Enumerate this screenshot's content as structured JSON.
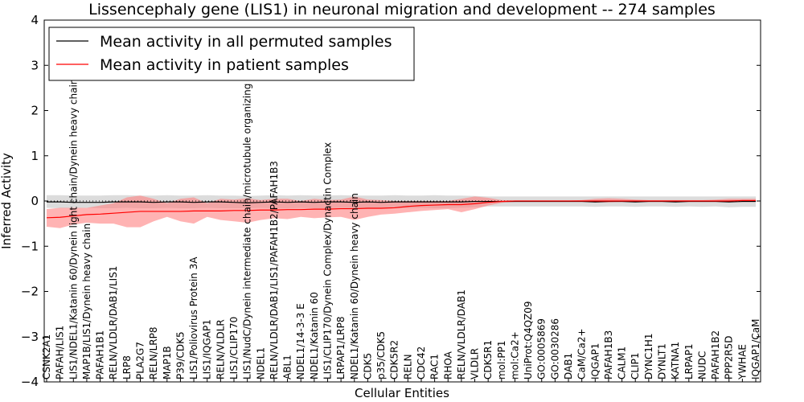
{
  "chart_data": {
    "type": "line",
    "title": "Lissencephaly gene (LIS1) in neuronal migration and development -- 274 samples",
    "xlabel": "Cellular Entities",
    "ylabel": "Inferred Activity",
    "ylim": [
      -4,
      4
    ],
    "yticks": [
      -4,
      -3,
      -2,
      -1,
      0,
      1,
      2,
      3,
      4
    ],
    "ytick_labels": [
      "−4",
      "−3",
      "−2",
      "−1",
      "0",
      "1",
      "2",
      "3",
      "4"
    ],
    "legend_position": "top-left",
    "categories": [
      "CSNK2A1",
      "PAFAH/LIS1",
      "LIS1/NDEL1/Katanin 60/Dynein light chain/Dynein heavy chain",
      "MAP1B/LIS1/Dynein heavy chain",
      "PAFAH1B1",
      "RELN/VLDLR/DAB1/LIS1",
      "LRP8",
      "PLA2G7",
      "RELN/LRP8",
      "MAP1B",
      "P39/CDK5",
      "LIS1/Poliovirus Protein 3A",
      "LIS1/IQGAP1",
      "RELN/VLDLR",
      "LIS1/CLIP170",
      "LIS1/NudC/Dynein intermediate chain/microtubule organizing center",
      "NDEL1",
      "RELN/VLDLR/DAB1/LIS1/PAFAH1B2/PAFAH1B3",
      "ABL1",
      "NDEL1/14-3-3 E",
      "NDEL1/Katanin 60",
      "LIS1/CLIP170/Dynein Complex/Dynactin Complex",
      "LRPAP1/LRP8",
      "NDEL1/Katanin 60/Dynein heavy chain",
      "CDK5",
      "p35/CDK5",
      "CDK5R2",
      "RELN",
      "CDC42",
      "RAC1",
      "RHOA",
      "RELN/VLDLR/DAB1",
      "VLDLR",
      "CDK5R1",
      "mol:PP1",
      "mol:Ca2+",
      "UniProt:Q4QZ09",
      "GO:0005869",
      "GO:0030286",
      "DAB1",
      "CaM/Ca2+",
      "IQGAP1",
      "PAFAH1B3",
      "CALM1",
      "CLIP1",
      "DYNC1H1",
      "DYNLT1",
      "KATNA1",
      "LRPAP1",
      "NUDC",
      "PAFAH1B2",
      "PPP2R5D",
      "YWHAE",
      "IQGAP1/CaM"
    ],
    "series": [
      {
        "name": "Mean activity in all permuted samples",
        "color": "#000000",
        "band_color": "#c0c0c0",
        "values": [
          -0.02,
          -0.02,
          -0.03,
          -0.03,
          -0.03,
          -0.02,
          -0.02,
          -0.02,
          -0.03,
          -0.02,
          -0.02,
          -0.03,
          -0.02,
          -0.02,
          -0.03,
          -0.04,
          -0.03,
          -0.02,
          -0.03,
          -0.02,
          -0.03,
          -0.02,
          -0.02,
          -0.03,
          -0.02,
          -0.03,
          -0.02,
          -0.02,
          -0.02,
          -0.02,
          -0.02,
          -0.02,
          -0.01,
          -0.01,
          -0.01,
          -0.01,
          -0.01,
          -0.01,
          -0.01,
          -0.01,
          -0.01,
          -0.02,
          -0.01,
          -0.01,
          -0.02,
          -0.01,
          -0.01,
          -0.02,
          -0.01,
          -0.01,
          -0.01,
          -0.02,
          -0.01,
          -0.01
        ],
        "lower": [
          -0.15,
          -0.16,
          -0.16,
          -0.15,
          -0.16,
          -0.16,
          -0.15,
          -0.16,
          -0.16,
          -0.15,
          -0.16,
          -0.16,
          -0.15,
          -0.16,
          -0.16,
          -0.16,
          -0.15,
          -0.16,
          -0.16,
          -0.15,
          -0.16,
          -0.16,
          -0.15,
          -0.16,
          -0.16,
          -0.15,
          -0.16,
          -0.16,
          -0.15,
          -0.16,
          -0.16,
          -0.15,
          -0.14,
          -0.12,
          -0.12,
          -0.12,
          -0.12,
          -0.12,
          -0.12,
          -0.12,
          -0.12,
          -0.13,
          -0.12,
          -0.12,
          -0.13,
          -0.12,
          -0.12,
          -0.13,
          -0.12,
          -0.13,
          -0.12,
          -0.14,
          -0.13,
          -0.13
        ],
        "upper": [
          0.13,
          0.13,
          0.12,
          0.12,
          0.12,
          0.13,
          0.13,
          0.12,
          0.12,
          0.13,
          0.12,
          0.12,
          0.13,
          0.12,
          0.12,
          0.11,
          0.12,
          0.13,
          0.12,
          0.13,
          0.12,
          0.12,
          0.13,
          0.12,
          0.12,
          0.12,
          0.13,
          0.12,
          0.12,
          0.13,
          0.12,
          0.12,
          0.11,
          0.1,
          0.1,
          0.1,
          0.1,
          0.1,
          0.1,
          0.1,
          0.1,
          0.1,
          0.1,
          0.1,
          0.1,
          0.1,
          0.1,
          0.1,
          0.1,
          0.1,
          0.1,
          0.1,
          0.1,
          0.1
        ]
      },
      {
        "name": "Mean activity in patient samples",
        "color": "#ff0000",
        "band_color": "#ff8080",
        "values": [
          -0.37,
          -0.36,
          -0.33,
          -0.3,
          -0.29,
          -0.27,
          -0.25,
          -0.23,
          -0.23,
          -0.23,
          -0.23,
          -0.22,
          -0.22,
          -0.22,
          -0.21,
          -0.21,
          -0.2,
          -0.2,
          -0.19,
          -0.19,
          -0.18,
          -0.18,
          -0.17,
          -0.17,
          -0.16,
          -0.16,
          -0.15,
          -0.12,
          -0.1,
          -0.09,
          -0.08,
          -0.08,
          -0.06,
          -0.03,
          -0.01,
          0.0,
          0.0,
          0.0,
          0.0,
          0.0,
          0.0,
          0.0,
          0.0,
          0.0,
          0.0,
          0.0,
          0.0,
          0.0,
          0.0,
          0.0,
          0.0,
          0.0,
          0.01,
          0.01
        ],
        "lower": [
          -0.57,
          -0.6,
          -0.52,
          -0.48,
          -0.5,
          -0.5,
          -0.58,
          -0.58,
          -0.45,
          -0.35,
          -0.45,
          -0.5,
          -0.35,
          -0.42,
          -0.45,
          -0.48,
          -0.42,
          -0.38,
          -0.4,
          -0.35,
          -0.38,
          -0.36,
          -0.35,
          -0.42,
          -0.35,
          -0.3,
          -0.28,
          -0.25,
          -0.22,
          -0.2,
          -0.18,
          -0.25,
          -0.18,
          -0.1,
          -0.04,
          -0.02,
          -0.01,
          -0.01,
          -0.01,
          -0.01,
          -0.01,
          -0.03,
          -0.03,
          -0.02,
          -0.02,
          -0.02,
          -0.02,
          -0.02,
          -0.02,
          -0.02,
          -0.02,
          -0.02,
          -0.02,
          -0.02
        ],
        "upper": [
          -0.18,
          -0.15,
          -0.15,
          -0.15,
          -0.1,
          -0.05,
          0.08,
          0.12,
          0.05,
          -0.05,
          0.05,
          0.08,
          -0.05,
          0.05,
          0.03,
          0.06,
          0.02,
          0.05,
          0.05,
          0.0,
          0.05,
          0.02,
          0.03,
          0.1,
          0.03,
          0.02,
          0.0,
          0.0,
          0.0,
          0.0,
          0.0,
          0.05,
          0.1,
          0.07,
          0.02,
          0.01,
          0.01,
          0.01,
          0.01,
          0.01,
          0.02,
          0.05,
          0.06,
          0.05,
          0.03,
          0.02,
          0.02,
          0.02,
          0.02,
          0.02,
          0.03,
          0.05,
          0.05,
          0.05
        ]
      }
    ]
  }
}
